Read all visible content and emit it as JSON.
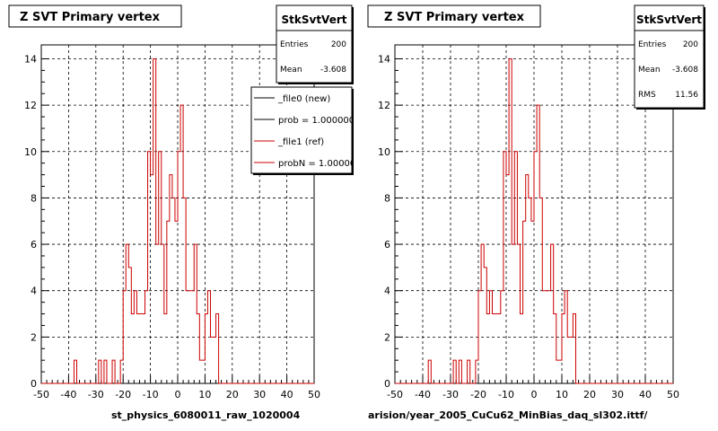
{
  "corner_note": "",
  "panels": [
    {
      "title": "Z SVT Primary vertex",
      "footer": "st_physics_6080011_raw_1020004",
      "stats": {
        "name": "StkSvtVert",
        "rows": [
          {
            "label": "Entries",
            "value": "200"
          },
          {
            "label": "Mean",
            "value": "-3.608"
          }
        ]
      },
      "legend": [
        {
          "label": "_file0 (new)",
          "color": "#000000"
        },
        {
          "label": "prob = 1.000000",
          "color": "#000000"
        },
        {
          "label": "_file1 (ref)",
          "color": "#cc0000"
        },
        {
          "label": "probN = 1.000000",
          "color": "#cc0000"
        }
      ]
    },
    {
      "title": "Z SVT Primary vertex",
      "footer": "arision/year_2005_CuCu62_MinBias_daq_sl302.ittf/",
      "stats": {
        "name": "StkSvtVert",
        "rows": [
          {
            "label": "Entries",
            "value": "200"
          },
          {
            "label": "Mean",
            "value": "-3.608"
          },
          {
            "label": "RMS",
            "value": "11.56"
          }
        ]
      },
      "legend": []
    }
  ],
  "chart_data": {
    "type": "bar",
    "histogram": true,
    "bin_width": 1,
    "x_start": -50,
    "xlim": [
      -50,
      50
    ],
    "ylim": [
      0,
      14.6
    ],
    "xticks": [
      -50,
      -40,
      -30,
      -20,
      -10,
      0,
      10,
      20,
      30,
      40,
      50
    ],
    "yticks": [
      0,
      2,
      4,
      6,
      8,
      10,
      12,
      14
    ],
    "grid": true,
    "series": [
      {
        "color": "#cc0000",
        "values": [
          0,
          0,
          0,
          0,
          0,
          0,
          0,
          0,
          0,
          0,
          0,
          0,
          1,
          0,
          0,
          0,
          0,
          0,
          0,
          0,
          0,
          1,
          0,
          1,
          0,
          0,
          1,
          0,
          0,
          1,
          4,
          6,
          5,
          3,
          4,
          3,
          3,
          3,
          4,
          10,
          9,
          14,
          6,
          10,
          6,
          3,
          7,
          9,
          8,
          7,
          10,
          12,
          8,
          4,
          4,
          4,
          6,
          3,
          1,
          1,
          3,
          4,
          2,
          2,
          3,
          0,
          0,
          0,
          0,
          0,
          0,
          0,
          0,
          0,
          0,
          0,
          0,
          0,
          0,
          0,
          0,
          0,
          0,
          0,
          0,
          0,
          0,
          0,
          0,
          0,
          0,
          0,
          0,
          0,
          0,
          0,
          0,
          0,
          0,
          0
        ]
      }
    ]
  }
}
